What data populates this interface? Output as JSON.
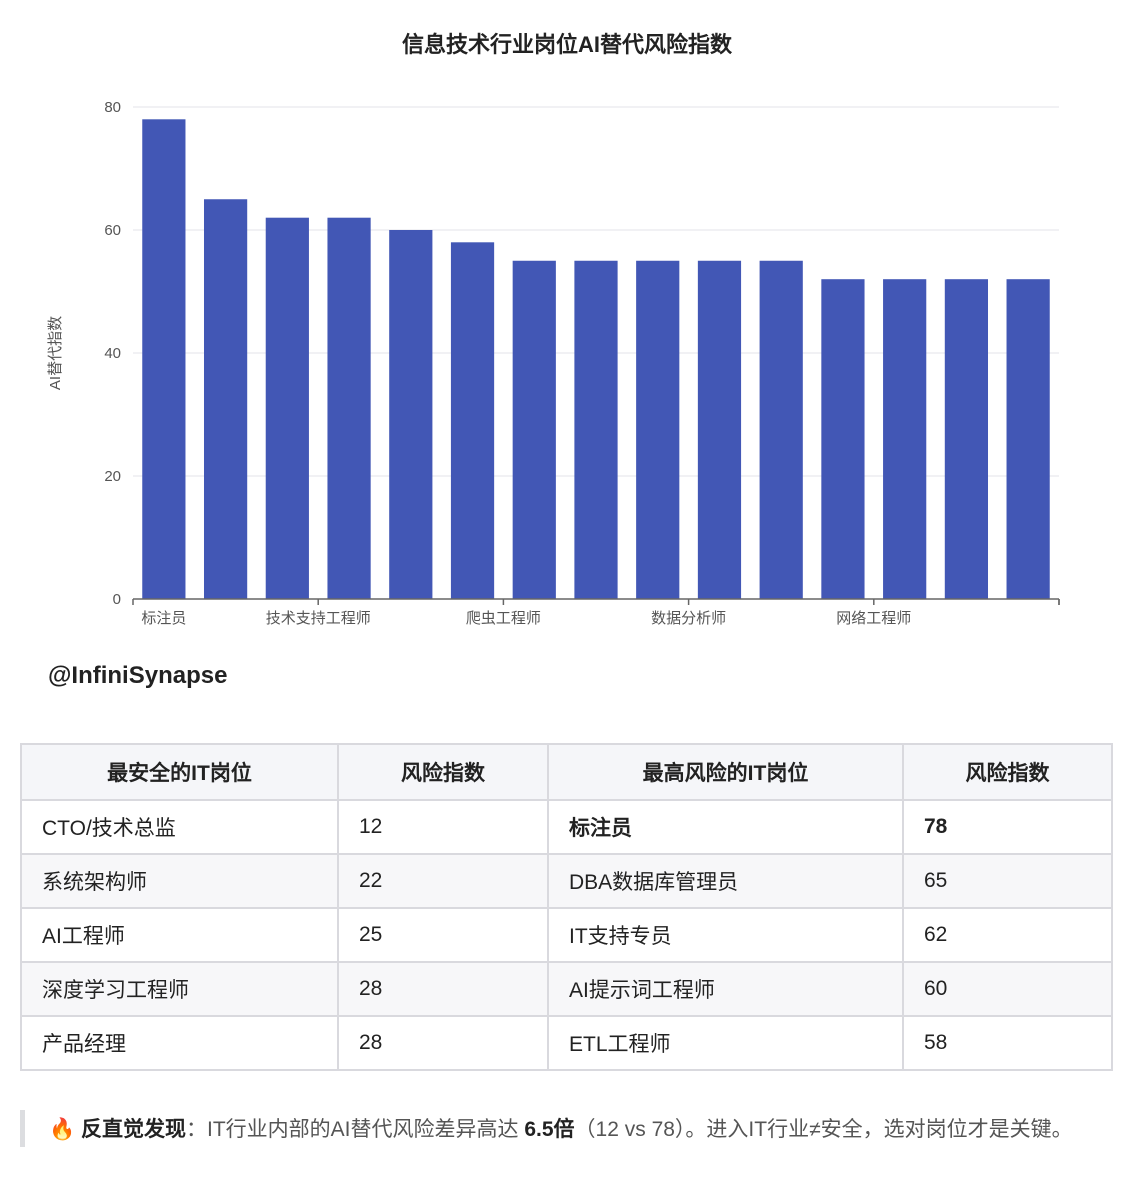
{
  "chart_data": {
    "type": "bar",
    "title": "信息技术行业岗位AI替代风险指数",
    "ylabel": "AI替代指数",
    "xlabel": "",
    "ylim": [
      0,
      80
    ],
    "yticks": [
      0,
      20,
      40,
      60,
      80
    ],
    "grid": true,
    "color": "#4257b5",
    "categories": [
      "标注员",
      "",
      "技术支持工程师",
      "",
      "爬虫工程师",
      "",
      "",
      "数据分析师",
      "",
      "",
      "网络工程师",
      "",
      "",
      "",
      ""
    ],
    "values": [
      78,
      65,
      62,
      62,
      60,
      58,
      55,
      55,
      55,
      55,
      55,
      52,
      52,
      52,
      52
    ],
    "xtick_labels": [
      {
        "index": 0,
        "label": "标注员"
      },
      {
        "index": 2.5,
        "label": "技术支持工程师"
      },
      {
        "index": 5.5,
        "label": "爬虫工程师"
      },
      {
        "index": 8.5,
        "label": "数据分析师"
      },
      {
        "index": 11.5,
        "label": "网络工程师"
      }
    ]
  },
  "watermark": "@InfiniSynapse",
  "table": {
    "headers": [
      "最安全的IT岗位",
      "风险指数",
      "最高风险的IT岗位",
      "风险指数"
    ],
    "rows": [
      [
        "CTO/技术总监",
        "12",
        "标注员",
        "78"
      ],
      [
        "系统架构师",
        "22",
        "DBA数据库管理员",
        "65"
      ],
      [
        "AI工程师",
        "25",
        "IT支持专员",
        "62"
      ],
      [
        "深度学习工程师",
        "28",
        "AI提示词工程师",
        "60"
      ],
      [
        "产品经理",
        "28",
        "ETL工程师",
        "58"
      ]
    ]
  },
  "note": {
    "icon": "🔥",
    "lead": "反直觉发现",
    "text1": "：IT行业内部的AI替代风险差异高达 ",
    "strong": "6.5倍",
    "text2": "（12 vs 78）。进入IT行业≠安全，选对岗位才是关键。"
  }
}
